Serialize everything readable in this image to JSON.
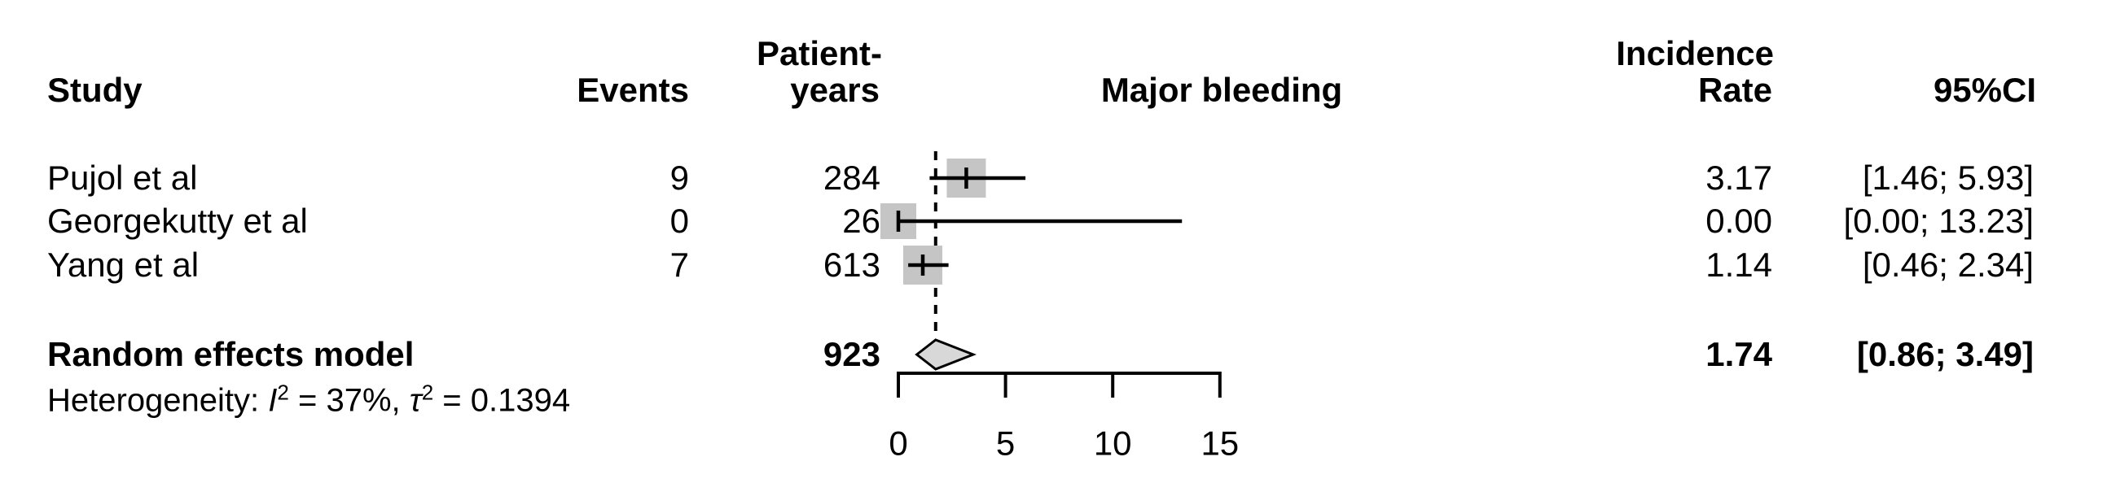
{
  "header": {
    "study": "Study",
    "events": "Events",
    "patient_years_line1": "Patient-",
    "patient_years_line2": "years",
    "plot_title": "Major bleeding",
    "incidence_line1": "Incidence",
    "incidence_line2": "Rate",
    "ci": "95%CI"
  },
  "rows": [
    {
      "study": "Pujol et al",
      "events": "9",
      "patient_years": "284",
      "rate": "3.17",
      "ci": "[1.46; 5.93]"
    },
    {
      "study": "Georgekutty et al",
      "events": "0",
      "patient_years": "26",
      "rate": "0.00",
      "ci": "[0.00; 13.23]"
    },
    {
      "study": "Yang et al",
      "events": "7",
      "patient_years": "613",
      "rate": "1.14",
      "ci": "[0.46; 2.34]"
    }
  ],
  "pooled": {
    "label": "Random effects model",
    "patient_years": "923",
    "rate": "1.74",
    "ci": "[0.86; 3.49]"
  },
  "heterogeneity": {
    "prefix": "Heterogeneity: ",
    "i_symbol": "I",
    "i_sup": "2",
    "middle": " = 37%, ",
    "tau_symbol": "τ",
    "tau_sup": "2",
    "suffix": " = 0.1394"
  },
  "colors": {
    "square_fill": "#c5c5c5",
    "diamond_fill": "#d8d8d8",
    "line": "#000000",
    "text": "#000000",
    "background": "#ffffff"
  },
  "chart_data": {
    "type": "forest",
    "title": "Major bleeding",
    "x_axis": {
      "min": 0,
      "max": 15,
      "ticks": [
        0,
        5,
        10,
        15
      ]
    },
    "reference_line": 1.74,
    "studies": [
      {
        "name": "Pujol et al",
        "events": 9,
        "patient_years": 284,
        "rate": 3.17,
        "ci_lower": 1.46,
        "ci_upper": 5.93,
        "marker_px": 48
      },
      {
        "name": "Georgekutty et al",
        "events": 0,
        "patient_years": 26,
        "rate": 0.0,
        "ci_lower": 0.0,
        "ci_upper": 13.23,
        "marker_px": 44
      },
      {
        "name": "Yang et al",
        "events": 7,
        "patient_years": 613,
        "rate": 1.14,
        "ci_lower": 0.46,
        "ci_upper": 2.34,
        "marker_px": 48
      }
    ],
    "pooled": {
      "name": "Random effects model",
      "patient_years": 923,
      "rate": 1.74,
      "ci_lower": 0.86,
      "ci_upper": 3.49
    },
    "heterogeneity": {
      "I2": "37%",
      "tau2": "0.1394"
    },
    "legend": "none",
    "grid": false
  }
}
